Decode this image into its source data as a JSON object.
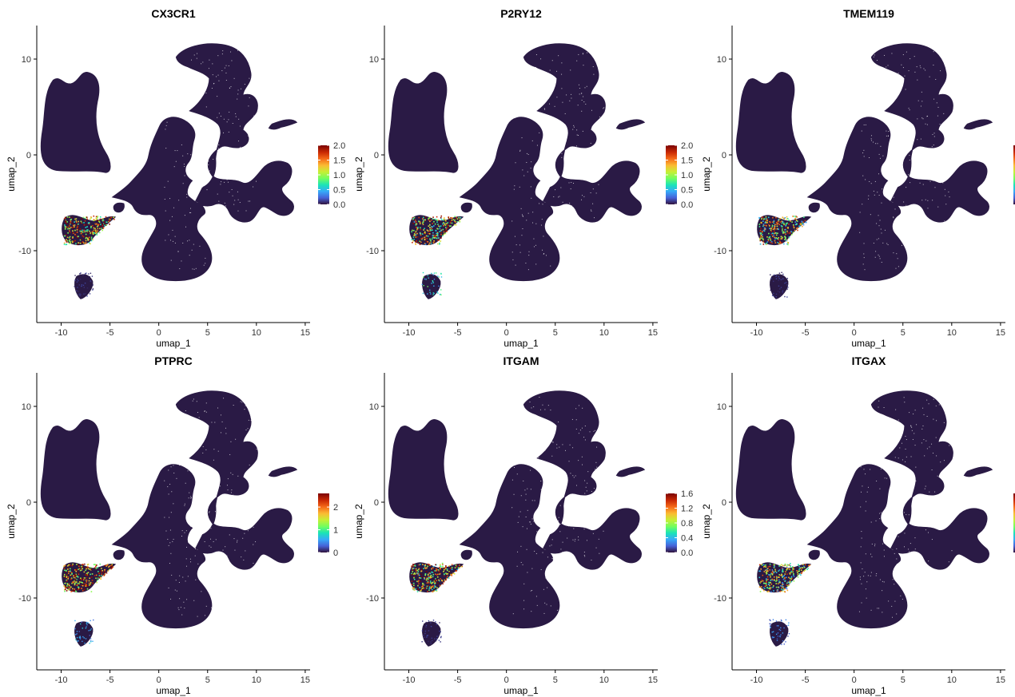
{
  "chart_data": [
    {
      "type": "scatter",
      "title": "CX3CR1",
      "xlabel": "umap_1",
      "ylabel": "umap_2",
      "xlim": [
        -12.5,
        15.5
      ],
      "ylim": [
        -17.5,
        13.5
      ],
      "x_ticks": [
        "-10",
        "-5",
        "0",
        "5",
        "10",
        "15"
      ],
      "y_ticks": [
        "10",
        "0",
        "-10"
      ],
      "legend": {
        "position": "right",
        "min": 0,
        "max": 2.0,
        "labels": [
          "2.0",
          "1.5",
          "1.0",
          "0.5",
          "0.0"
        ],
        "values": [
          2.0,
          1.5,
          1.0,
          0.5,
          0.0
        ],
        "visible": true
      },
      "expression": {
        "microglia_cluster": 0.7,
        "small_cluster": 0.05
      }
    },
    {
      "type": "scatter",
      "title": "P2RY12",
      "xlabel": "umap_1",
      "ylabel": "umap_2",
      "xlim": [
        -12.5,
        15.5
      ],
      "ylim": [
        -17.5,
        13.5
      ],
      "x_ticks": [
        "-10",
        "-5",
        "0",
        "5",
        "10",
        "15"
      ],
      "y_ticks": [
        "10",
        "0",
        "-10"
      ],
      "legend": {
        "position": "right",
        "min": 0,
        "max": 2.0,
        "labels": [
          "2.0",
          "1.5",
          "1.0",
          "0.5",
          "0.0"
        ],
        "values": [
          2.0,
          1.5,
          1.0,
          0.5,
          0.0
        ],
        "visible": true
      },
      "expression": {
        "microglia_cluster": 0.6,
        "small_cluster": 0.3
      }
    },
    {
      "type": "scatter",
      "title": "TMEM119",
      "xlabel": "umap_1",
      "ylabel": "umap_2",
      "xlim": [
        -12.5,
        15.5
      ],
      "ylim": [
        -17.5,
        13.5
      ],
      "x_ticks": [
        "-10",
        "-5",
        "0",
        "5",
        "10",
        "15"
      ],
      "y_ticks": [
        "10",
        "0",
        "-10"
      ],
      "legend": {
        "position": "right",
        "min": 0,
        "max": 1,
        "labels": [],
        "values": [],
        "visible": true
      },
      "expression": {
        "microglia_cluster": 0.55,
        "small_cluster": 0.05
      }
    },
    {
      "type": "scatter",
      "title": "PTPRC",
      "xlabel": "umap_1",
      "ylabel": "umap_2",
      "xlim": [
        -12.5,
        15.5
      ],
      "ylim": [
        -17.5,
        13.5
      ],
      "x_ticks": [
        "-10",
        "-5",
        "0",
        "5",
        "10",
        "15"
      ],
      "y_ticks": [
        "10",
        "0",
        "-10"
      ],
      "legend": {
        "position": "right",
        "min": 0,
        "max": 2.6,
        "labels": [
          "2",
          "1",
          "0"
        ],
        "values": [
          2,
          1,
          0
        ],
        "visible": true
      },
      "expression": {
        "microglia_cluster": 0.75,
        "small_cluster": 0.2
      }
    },
    {
      "type": "scatter",
      "title": "ITGAM",
      "xlabel": "umap_1",
      "ylabel": "umap_2",
      "xlim": [
        -12.5,
        15.5
      ],
      "ylim": [
        -17.5,
        13.5
      ],
      "x_ticks": [
        "-10",
        "-5",
        "0",
        "5",
        "10",
        "15"
      ],
      "y_ticks": [
        "10",
        "0",
        "-10"
      ],
      "legend": {
        "position": "right",
        "min": 0,
        "max": 1.6,
        "labels": [
          "1.6",
          "1.2",
          "0.8",
          "0.4",
          "0.0"
        ],
        "values": [
          1.6,
          1.2,
          0.8,
          0.4,
          0.0
        ],
        "visible": true
      },
      "expression": {
        "microglia_cluster": 0.65,
        "small_cluster": 0.05
      }
    },
    {
      "type": "scatter",
      "title": "ITGAX",
      "xlabel": "umap_1",
      "ylabel": "umap_2",
      "xlim": [
        -12.5,
        15.5
      ],
      "ylim": [
        -17.5,
        13.5
      ],
      "x_ticks": [
        "-10",
        "-5",
        "0",
        "5",
        "10",
        "15"
      ],
      "y_ticks": [
        "10",
        "0",
        "-10"
      ],
      "legend": {
        "position": "right",
        "min": 0,
        "max": 1,
        "labels": [],
        "values": [],
        "visible": true
      },
      "expression": {
        "microglia_cluster": 0.5,
        "small_cluster": 0.15
      }
    }
  ],
  "colors": {
    "background_cells": "#2a1a45",
    "colormap": [
      "#30123b",
      "#4662d7",
      "#36aaf9",
      "#1ae4b6",
      "#72fe5e",
      "#c7ef34",
      "#fabb33",
      "#f66b19",
      "#ca2a04",
      "#7a0403"
    ]
  }
}
